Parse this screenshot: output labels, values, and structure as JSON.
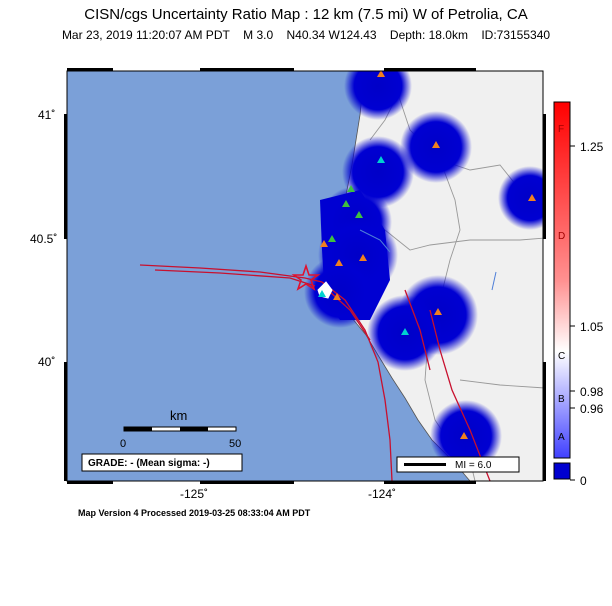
{
  "header": {
    "title": "CISN/cgs Uncertainty Ratio Map : 12 km (7.5 mi) W of Petrolia, CA",
    "datetime": "Mar 23, 2019 11:20:07 AM PDT",
    "magnitude": "M 3.0",
    "location": "N40.34 W124.43",
    "depth": "Depth: 18.0km",
    "event_id": "ID:73155340"
  },
  "axes": {
    "lat_labels": [
      "41˚",
      "40.5˚",
      "40˚"
    ],
    "lon_labels": [
      "-125˚",
      "-124˚"
    ]
  },
  "scale_bar": {
    "unit": "km",
    "start": "0",
    "end": "50"
  },
  "grade": "GRADE: - (Mean sigma: -)",
  "mi_legend": "MI = 6.0",
  "colorbar": {
    "values": [
      "1.25",
      "1.05",
      "0.98",
      "0.96",
      "0"
    ],
    "grades": [
      "F",
      "D",
      "C",
      "B",
      "A"
    ]
  },
  "footer": "Map Version 4 Processed 2019-03-25 08:33:04 AM PDT",
  "colors": {
    "ocean": "#7ba0d8",
    "land": "#f0f0f0",
    "low_ratio": "#0000cc",
    "fault": "#c8102e"
  }
}
